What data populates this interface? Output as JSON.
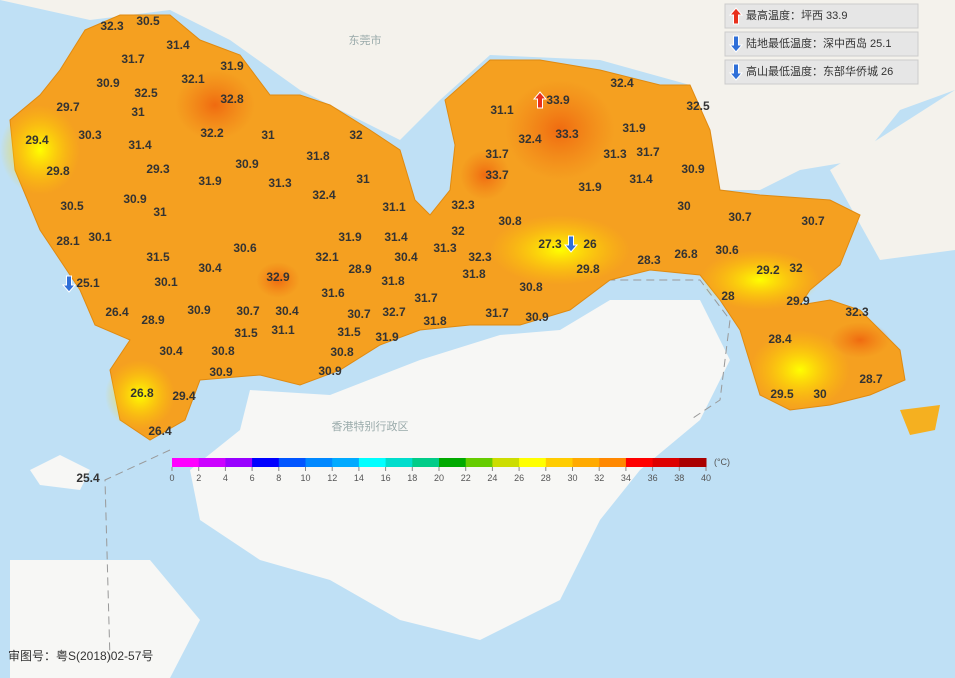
{
  "map": {
    "place_names": [
      "东莞市",
      "香港特别行政区"
    ],
    "legend": [
      {
        "label": "最高温度：坪西 33.9",
        "arrow": "up"
      },
      {
        "label": "陆地最低温度：深中西岛 25.1",
        "arrow": "down"
      },
      {
        "label": "高山最低温度：东部华侨城 26",
        "arrow": "down"
      }
    ],
    "stations": [
      32.3,
      30.5,
      31.4,
      31.7,
      31.9,
      32.1,
      30.9,
      32.5,
      32.8,
      29.7,
      31,
      29.4,
      30.3,
      32.2,
      31,
      32,
      31.4,
      29.8,
      29.3,
      30.9,
      31.8,
      31.9,
      31.3,
      31,
      30.5,
      30.9,
      31,
      32.4,
      31.1,
      28.1,
      30.1,
      30.6,
      31.9,
      31.4,
      31.5,
      30.4,
      32.1,
      30.4,
      28.9,
      31.3,
      32,
      32.3,
      31.8,
      31.8,
      25.1,
      30.1,
      32.9,
      31.6,
      31.7,
      26.4,
      28.9,
      30.9,
      30.7,
      30.4,
      30.7,
      32.7,
      31.8,
      31.7,
      30.9,
      31.5,
      31.1,
      31.5,
      31.9,
      30.4,
      30.8,
      30.8,
      30.9,
      30.9,
      26.8,
      29.4,
      26.4,
      25.4,
      33.9,
      32.4,
      32.5,
      31.1,
      32.4,
      33.3,
      31.9,
      31.7,
      31.3,
      31.7,
      30.9,
      33.7,
      31.9,
      31.4,
      30,
      32.3,
      30.8,
      30.7,
      30.7,
      27.3,
      26,
      29.8,
      28.3,
      26.8,
      30.6,
      29.2,
      32,
      30.8,
      28,
      29.9,
      32.3,
      28.4,
      28.7,
      29.5,
      30
    ],
    "colorbar": {
      "unit": "(°C)",
      "ticks": [
        0,
        2,
        4,
        6,
        8,
        10,
        12,
        14,
        16,
        18,
        20,
        22,
        24,
        26,
        28,
        30,
        32,
        34,
        36,
        38,
        40
      ],
      "colors": [
        "#ff00ff",
        "#cc00ff",
        "#9900ff",
        "#0000ff",
        "#0055ff",
        "#0088ff",
        "#00aaff",
        "#00ffff",
        "#00ddcc",
        "#00cc88",
        "#00aa00",
        "#66cc00",
        "#ccdd00",
        "#ffff00",
        "#ffcc00",
        "#ffaa00",
        "#ff8800",
        "#ff0000",
        "#dd0000",
        "#aa0000"
      ]
    },
    "approval_number": "审图号：粤S(2018)02-57号"
  }
}
